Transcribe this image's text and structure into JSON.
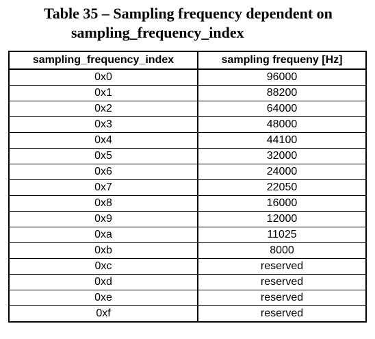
{
  "caption": {
    "line1": "Table 35 – Sampling frequency dependent on",
    "line2": "sampling_frequency_index"
  },
  "table": {
    "headers": [
      "sampling_frequency_index",
      "sampling frequeny [Hz]"
    ],
    "rows": [
      [
        "0x0",
        "96000"
      ],
      [
        "0x1",
        "88200"
      ],
      [
        "0x2",
        "64000"
      ],
      [
        "0x3",
        "48000"
      ],
      [
        "0x4",
        "44100"
      ],
      [
        "0x5",
        "32000"
      ],
      [
        "0x6",
        "24000"
      ],
      [
        "0x7",
        "22050"
      ],
      [
        "0x8",
        "16000"
      ],
      [
        "0x9",
        "12000"
      ],
      [
        "0xa",
        "11025"
      ],
      [
        "0xb",
        "8000"
      ],
      [
        "0xc",
        "reserved"
      ],
      [
        "0xd",
        "reserved"
      ],
      [
        "0xe",
        "reserved"
      ],
      [
        "0xf",
        "reserved"
      ]
    ]
  }
}
